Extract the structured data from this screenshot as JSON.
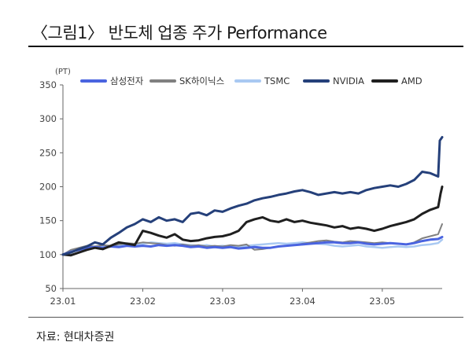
{
  "header": {
    "title": "〈그림1〉 반도체 업종 주가 Performance"
  },
  "footer": {
    "source": "자료: 현대차증권"
  },
  "chart_data": {
    "type": "line",
    "unit": "(PT)",
    "ylim": [
      50,
      350
    ],
    "yticks": [
      50,
      100,
      150,
      200,
      250,
      300,
      350
    ],
    "xlim": [
      0,
      4.75
    ],
    "xticks": [
      0,
      1,
      2,
      3,
      4
    ],
    "xticklabels": [
      "23.01",
      "23.02",
      "23.03",
      "23.04",
      "23.05"
    ],
    "grid": false,
    "legend_position": "top",
    "series": [
      {
        "name": "삼성전자",
        "color": "#4a64e0",
        "width": 3,
        "points": [
          [
            0,
            100
          ],
          [
            0.1,
            104
          ],
          [
            0.2,
            107
          ],
          [
            0.3,
            110
          ],
          [
            0.4,
            111
          ],
          [
            0.5,
            110
          ],
          [
            0.6,
            112
          ],
          [
            0.7,
            111
          ],
          [
            0.8,
            113
          ],
          [
            0.9,
            112
          ],
          [
            1.0,
            113
          ],
          [
            1.1,
            112
          ],
          [
            1.2,
            114
          ],
          [
            1.3,
            113
          ],
          [
            1.4,
            114
          ],
          [
            1.5,
            113
          ],
          [
            1.6,
            111
          ],
          [
            1.7,
            112
          ],
          [
            1.8,
            110
          ],
          [
            1.9,
            111
          ],
          [
            2.0,
            110
          ],
          [
            2.1,
            111
          ],
          [
            2.2,
            109
          ],
          [
            2.3,
            110
          ],
          [
            2.4,
            111
          ],
          [
            2.5,
            110
          ],
          [
            2.6,
            110
          ],
          [
            2.7,
            112
          ],
          [
            2.8,
            113
          ],
          [
            2.9,
            114
          ],
          [
            3.0,
            115
          ],
          [
            3.1,
            116
          ],
          [
            3.2,
            117
          ],
          [
            3.3,
            118
          ],
          [
            3.4,
            118
          ],
          [
            3.5,
            117
          ],
          [
            3.6,
            117
          ],
          [
            3.7,
            118
          ],
          [
            3.8,
            116
          ],
          [
            3.9,
            115
          ],
          [
            4.0,
            116
          ],
          [
            4.1,
            117
          ],
          [
            4.2,
            116
          ],
          [
            4.3,
            115
          ],
          [
            4.4,
            117
          ],
          [
            4.5,
            120
          ],
          [
            4.6,
            122
          ],
          [
            4.7,
            123
          ],
          [
            4.75,
            126
          ]
        ]
      },
      {
        "name": "SK하이닉스",
        "color": "#808080",
        "width": 2,
        "points": [
          [
            0,
            100
          ],
          [
            0.1,
            107
          ],
          [
            0.2,
            110
          ],
          [
            0.3,
            113
          ],
          [
            0.4,
            112
          ],
          [
            0.5,
            114
          ],
          [
            0.6,
            113
          ],
          [
            0.7,
            115
          ],
          [
            0.8,
            117
          ],
          [
            0.9,
            116
          ],
          [
            1.0,
            118
          ],
          [
            1.1,
            117
          ],
          [
            1.2,
            116
          ],
          [
            1.3,
            114
          ],
          [
            1.4,
            113
          ],
          [
            1.5,
            115
          ],
          [
            1.6,
            113
          ],
          [
            1.7,
            114
          ],
          [
            1.8,
            112
          ],
          [
            1.9,
            113
          ],
          [
            2.0,
            112
          ],
          [
            2.1,
            114
          ],
          [
            2.2,
            113
          ],
          [
            2.3,
            115
          ],
          [
            2.4,
            107
          ],
          [
            2.5,
            108
          ],
          [
            2.6,
            110
          ],
          [
            2.7,
            112
          ],
          [
            2.8,
            113
          ],
          [
            2.9,
            114
          ],
          [
            3.0,
            116
          ],
          [
            3.1,
            118
          ],
          [
            3.2,
            120
          ],
          [
            3.3,
            121
          ],
          [
            3.4,
            119
          ],
          [
            3.5,
            118
          ],
          [
            3.6,
            120
          ],
          [
            3.7,
            119
          ],
          [
            3.8,
            118
          ],
          [
            3.9,
            117
          ],
          [
            4.0,
            118
          ],
          [
            4.1,
            117
          ],
          [
            4.2,
            116
          ],
          [
            4.3,
            115
          ],
          [
            4.4,
            118
          ],
          [
            4.5,
            124
          ],
          [
            4.6,
            127
          ],
          [
            4.7,
            130
          ],
          [
            4.75,
            145
          ]
        ]
      },
      {
        "name": "TSMC",
        "color": "#a9c9f2",
        "width": 2.5,
        "points": [
          [
            0,
            100
          ],
          [
            0.1,
            106
          ],
          [
            0.2,
            109
          ],
          [
            0.3,
            111
          ],
          [
            0.4,
            112
          ],
          [
            0.5,
            113
          ],
          [
            0.6,
            112
          ],
          [
            0.7,
            114
          ],
          [
            0.8,
            115
          ],
          [
            0.9,
            114
          ],
          [
            1.0,
            116
          ],
          [
            1.1,
            118
          ],
          [
            1.2,
            117
          ],
          [
            1.3,
            116
          ],
          [
            1.4,
            117
          ],
          [
            1.5,
            115
          ],
          [
            1.6,
            114
          ],
          [
            1.7,
            113
          ],
          [
            1.8,
            114
          ],
          [
            1.9,
            112
          ],
          [
            2.0,
            113
          ],
          [
            2.1,
            112
          ],
          [
            2.2,
            111
          ],
          [
            2.3,
            113
          ],
          [
            2.4,
            114
          ],
          [
            2.5,
            115
          ],
          [
            2.6,
            116
          ],
          [
            2.7,
            117
          ],
          [
            2.8,
            116
          ],
          [
            2.9,
            117
          ],
          [
            3.0,
            118
          ],
          [
            3.1,
            117
          ],
          [
            3.2,
            116
          ],
          [
            3.3,
            115
          ],
          [
            3.4,
            113
          ],
          [
            3.5,
            112
          ],
          [
            3.6,
            113
          ],
          [
            3.7,
            114
          ],
          [
            3.8,
            112
          ],
          [
            3.9,
            111
          ],
          [
            4.0,
            110
          ],
          [
            4.1,
            111
          ],
          [
            4.2,
            112
          ],
          [
            4.3,
            111
          ],
          [
            4.4,
            112
          ],
          [
            4.5,
            114
          ],
          [
            4.6,
            115
          ],
          [
            4.7,
            117
          ],
          [
            4.75,
            122
          ]
        ]
      },
      {
        "name": "NVIDIA",
        "color": "#25407a",
        "width": 3,
        "points": [
          [
            0,
            100
          ],
          [
            0.1,
            103
          ],
          [
            0.2,
            108
          ],
          [
            0.3,
            112
          ],
          [
            0.4,
            118
          ],
          [
            0.5,
            115
          ],
          [
            0.6,
            125
          ],
          [
            0.7,
            132
          ],
          [
            0.8,
            140
          ],
          [
            0.9,
            145
          ],
          [
            1.0,
            152
          ],
          [
            1.1,
            148
          ],
          [
            1.2,
            155
          ],
          [
            1.3,
            150
          ],
          [
            1.4,
            152
          ],
          [
            1.5,
            148
          ],
          [
            1.6,
            160
          ],
          [
            1.7,
            162
          ],
          [
            1.8,
            158
          ],
          [
            1.9,
            165
          ],
          [
            2.0,
            163
          ],
          [
            2.1,
            168
          ],
          [
            2.2,
            172
          ],
          [
            2.3,
            175
          ],
          [
            2.4,
            180
          ],
          [
            2.5,
            183
          ],
          [
            2.6,
            185
          ],
          [
            2.7,
            188
          ],
          [
            2.8,
            190
          ],
          [
            2.9,
            193
          ],
          [
            3.0,
            195
          ],
          [
            3.1,
            192
          ],
          [
            3.2,
            188
          ],
          [
            3.3,
            190
          ],
          [
            3.4,
            192
          ],
          [
            3.5,
            190
          ],
          [
            3.6,
            192
          ],
          [
            3.7,
            190
          ],
          [
            3.8,
            195
          ],
          [
            3.9,
            198
          ],
          [
            4.0,
            200
          ],
          [
            4.1,
            202
          ],
          [
            4.2,
            200
          ],
          [
            4.3,
            204
          ],
          [
            4.4,
            210
          ],
          [
            4.5,
            222
          ],
          [
            4.6,
            220
          ],
          [
            4.7,
            215
          ],
          [
            4.72,
            268
          ],
          [
            4.75,
            273
          ]
        ]
      },
      {
        "name": "AMD",
        "color": "#1f1f1f",
        "width": 3,
        "points": [
          [
            0,
            100
          ],
          [
            0.1,
            99
          ],
          [
            0.2,
            103
          ],
          [
            0.3,
            107
          ],
          [
            0.4,
            110
          ],
          [
            0.5,
            108
          ],
          [
            0.6,
            113
          ],
          [
            0.7,
            118
          ],
          [
            0.8,
            116
          ],
          [
            0.9,
            114
          ],
          [
            1.0,
            135
          ],
          [
            1.1,
            132
          ],
          [
            1.2,
            128
          ],
          [
            1.3,
            125
          ],
          [
            1.4,
            130
          ],
          [
            1.5,
            122
          ],
          [
            1.6,
            120
          ],
          [
            1.7,
            121
          ],
          [
            1.8,
            124
          ],
          [
            1.9,
            126
          ],
          [
            2.0,
            127
          ],
          [
            2.1,
            130
          ],
          [
            2.2,
            135
          ],
          [
            2.3,
            148
          ],
          [
            2.4,
            152
          ],
          [
            2.5,
            155
          ],
          [
            2.6,
            150
          ],
          [
            2.7,
            148
          ],
          [
            2.8,
            152
          ],
          [
            2.9,
            148
          ],
          [
            3.0,
            150
          ],
          [
            3.1,
            147
          ],
          [
            3.2,
            145
          ],
          [
            3.3,
            143
          ],
          [
            3.4,
            140
          ],
          [
            3.5,
            142
          ],
          [
            3.6,
            138
          ],
          [
            3.7,
            140
          ],
          [
            3.8,
            138
          ],
          [
            3.9,
            135
          ],
          [
            4.0,
            138
          ],
          [
            4.1,
            142
          ],
          [
            4.2,
            145
          ],
          [
            4.3,
            148
          ],
          [
            4.4,
            152
          ],
          [
            4.5,
            160
          ],
          [
            4.6,
            166
          ],
          [
            4.7,
            170
          ],
          [
            4.73,
            190
          ],
          [
            4.75,
            200
          ]
        ]
      }
    ]
  }
}
